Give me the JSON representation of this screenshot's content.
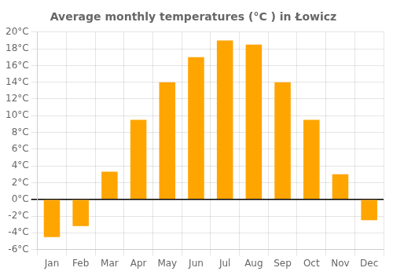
{
  "chart_data": {
    "type": "bar",
    "title": "Average monthly temperatures (°C ) in Łowicz",
    "categories": [
      "Jan",
      "Feb",
      "Mar",
      "Apr",
      "May",
      "Jun",
      "Jul",
      "Aug",
      "Sep",
      "Oct",
      "Nov",
      "Dec"
    ],
    "values": [
      -4.5,
      -3.2,
      3.3,
      9.5,
      14.0,
      17.0,
      19.0,
      18.5,
      14.0,
      9.5,
      3.0,
      -2.5
    ],
    "color": "#FFA500",
    "ylim": [
      -6,
      20
    ],
    "yticks": [
      {
        "value": -6,
        "label": "-6°C"
      },
      {
        "value": -4,
        "label": "-4°C"
      },
      {
        "value": -2,
        "label": "-2°C"
      },
      {
        "value": 0,
        "label": "0°C"
      },
      {
        "value": 2,
        "label": "2°C"
      },
      {
        "value": 4,
        "label": "4°C"
      },
      {
        "value": 6,
        "label": "6°C"
      },
      {
        "value": 8,
        "label": "8°C"
      },
      {
        "value": 10,
        "label": "10°C"
      },
      {
        "value": 12,
        "label": "12°C"
      },
      {
        "value": 14,
        "label": "14°C"
      },
      {
        "value": 16,
        "label": "16°C"
      },
      {
        "value": 18,
        "label": "18°C"
      },
      {
        "value": 20,
        "label": "20°C"
      }
    ],
    "grid": true
  }
}
